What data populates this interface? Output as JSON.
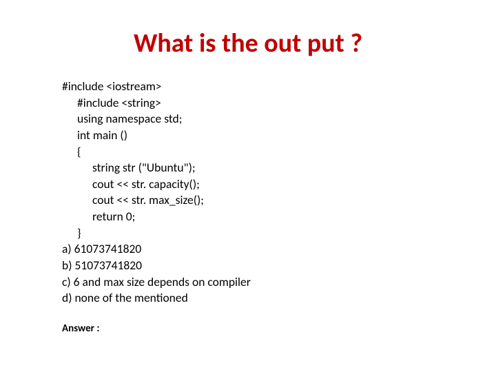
{
  "title": "What is the out put ?",
  "title_color": "#c00000",
  "title_fontsize": 38,
  "content_fontsize": 17.5,
  "content_color": "#000000",
  "background_color": "#ffffff",
  "line_height": 1.35,
  "code": {
    "l1": "#include <iostream>",
    "l2": "#include <string>",
    "l3": "using namespace std;",
    "l4": "int main ()",
    "l5": "{",
    "l6": "string str (\"Ubuntu\");",
    "l7": "cout << str. capacity();",
    "l8": "cout << str. max_size();",
    "l9": "return 0;",
    "l10": "}"
  },
  "options": {
    "a": "a) 61073741820",
    "b": "b) 51073741820",
    "c": "c) 6 and max size depends on compiler",
    "d": "d) none of the mentioned"
  },
  "answer_label": "Answer :"
}
